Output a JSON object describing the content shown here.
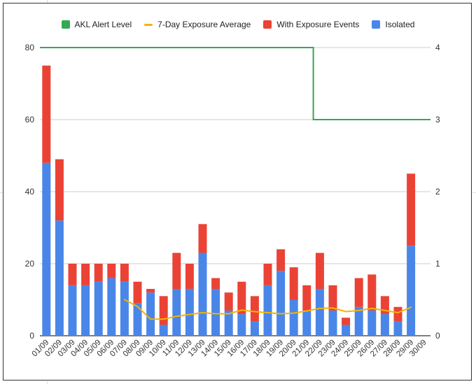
{
  "chart_data": {
    "type": "bar",
    "stacked": true,
    "categories": [
      "01/09",
      "02/09",
      "03/09",
      "04/09",
      "05/09",
      "06/09",
      "07/09",
      "08/09",
      "09/09",
      "10/09",
      "11/09",
      "12/09",
      "13/09",
      "14/09",
      "15/09",
      "16/09",
      "17/09",
      "18/09",
      "19/09",
      "20/09",
      "21/09",
      "22/09",
      "23/09",
      "24/09",
      "25/09",
      "26/09",
      "27/09",
      "28/09",
      "29/09",
      "30/09"
    ],
    "series": [
      {
        "name": "Isolated",
        "type": "bar",
        "axis": "left",
        "color": "#4a86e8",
        "values": [
          48,
          32,
          14,
          14,
          15,
          16,
          15,
          9,
          12,
          3,
          13,
          13,
          23,
          13,
          7,
          6,
          4,
          14,
          18,
          10,
          7,
          13,
          7,
          3,
          8,
          7,
          6,
          4,
          25,
          null
        ]
      },
      {
        "name": "With Exposure Events",
        "type": "bar",
        "axis": "left",
        "color": "#ea4335",
        "values": [
          27,
          17,
          6,
          6,
          5,
          4,
          5,
          6,
          1,
          8,
          10,
          7,
          8,
          3,
          5,
          9,
          7,
          6,
          6,
          9,
          7,
          10,
          7,
          2,
          8,
          10,
          5,
          4,
          20,
          null
        ]
      },
      {
        "name": "7-Day Exposure Average",
        "type": "line",
        "axis": "left",
        "color": "#f4b400",
        "values": [
          null,
          null,
          null,
          null,
          null,
          null,
          10.0,
          8.1,
          4.6,
          4.6,
          5.4,
          5.9,
          6.4,
          6.1,
          6.1,
          7.1,
          6.7,
          6.4,
          6.1,
          6.3,
          6.9,
          7.6,
          7.7,
          6.7,
          7.0,
          7.6,
          7.0,
          6.4,
          7.9,
          null
        ]
      },
      {
        "name": "AKL Alert Level",
        "type": "step",
        "axis": "right",
        "color": "#34a853",
        "values": [
          4,
          4,
          4,
          4,
          4,
          4,
          4,
          4,
          4,
          4,
          4,
          4,
          4,
          4,
          4,
          4,
          4,
          4,
          4,
          4,
          4,
          3,
          3,
          3,
          3,
          3,
          3,
          3,
          3,
          3
        ]
      }
    ],
    "left_axis": {
      "ylim": [
        0,
        80
      ],
      "ticks": [
        "0",
        "20",
        "40",
        "60",
        "80"
      ]
    },
    "right_axis": {
      "ylim": [
        0,
        4
      ],
      "ticks": [
        "0",
        "1",
        "2",
        "3",
        "4"
      ]
    },
    "grid": true,
    "legend_position": "top"
  }
}
